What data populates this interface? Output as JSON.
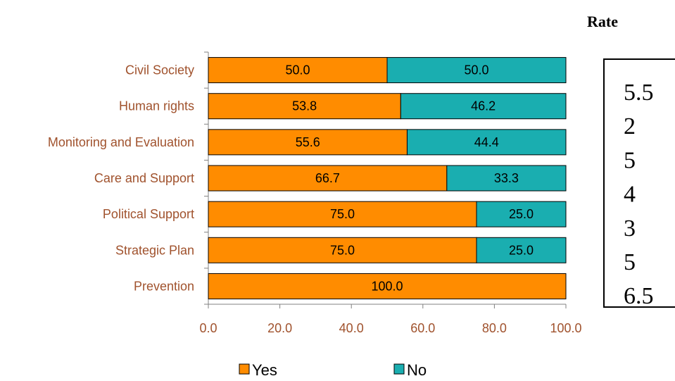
{
  "chart_data": {
    "type": "bar",
    "orientation": "horizontal",
    "stacked": true,
    "categories": [
      "Civil Society",
      "Human rights",
      "Monitoring and Evaluation",
      "Care and Support",
      "Political Support",
      "Strategic Plan",
      "Prevention"
    ],
    "series": [
      {
        "name": "Yes",
        "color": "#ff8c00",
        "values": [
          50.0,
          53.8,
          55.6,
          66.7,
          75.0,
          75.0,
          100.0
        ]
      },
      {
        "name": "No",
        "color": "#1aaeb0",
        "values": [
          50.0,
          46.2,
          44.4,
          33.3,
          25.0,
          25.0,
          0.0
        ]
      }
    ],
    "xlim": [
      0,
      100
    ],
    "x_ticks": [
      "0.0",
      "20.0",
      "40.0",
      "60.0",
      "80.0",
      "100.0"
    ],
    "legend_position": "bottom",
    "grid": false
  },
  "rate_panel": {
    "title": "Rate",
    "values": [
      "5.5",
      "2",
      "5",
      "4",
      "3",
      "5",
      "6.5"
    ]
  }
}
